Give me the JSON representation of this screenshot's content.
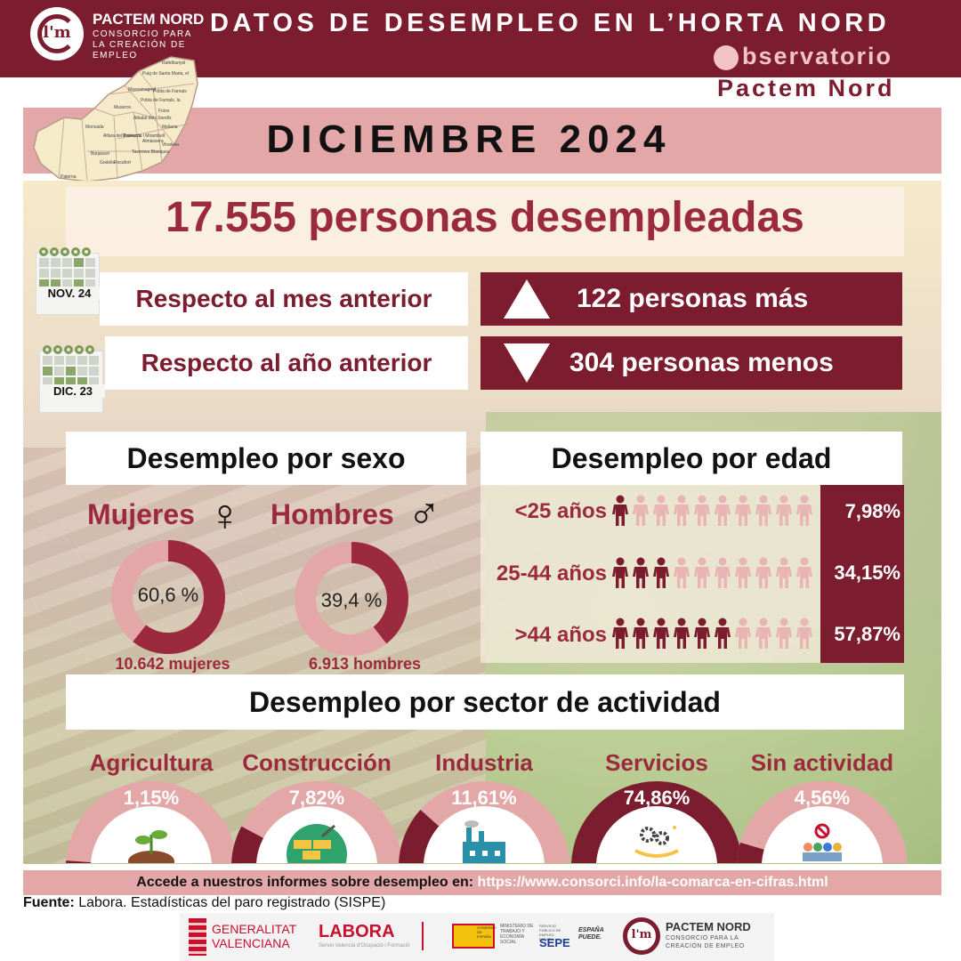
{
  "header": {
    "brand_name": "PACTEM NORD",
    "brand_tagline": "CONSORCIO PARA LA CREACIÓN DE EMPLEO",
    "logo_text": "l'm",
    "title": "DATOS DE DESEMPLEO EN L’HORTA NORD",
    "observatorio": "bservatorio",
    "observatorio_sub": "Pactem Nord"
  },
  "map_labels": [
    "Rafelbunyol",
    "Puig de Santa Maria, el",
    "Massamagrell",
    "Pobla de Farnals, la",
    "Museros",
    "Albalat dels Sorells",
    "Foios",
    "Meliana",
    "Moncada",
    "Alfara del Patriarca",
    "Bonrepòs i Mirambell",
    "Almàssera",
    "Tavernes Blanques",
    "Burjassot",
    "Godella",
    "Rocafort",
    "Paterna",
    "Vinalesa",
    "Pobla de Farnals"
  ],
  "month": "DICIEMBRE 2024",
  "headline": "17.555 personas desempleadas",
  "comparisons": [
    {
      "calendar_label": "NOV. 24",
      "label": "Respecto al mes anterior",
      "value": "122 personas más",
      "direction": "up"
    },
    {
      "calendar_label": "DIC. 23",
      "label": "Respecto al año anterior",
      "value": "304 personas menos",
      "direction": "down"
    }
  ],
  "sex": {
    "title": "Desempleo por sexo",
    "women": {
      "label": "Mujeres",
      "symbol": "♀",
      "pct_label": "60,6 %",
      "pct": 60.6,
      "count": "10.642 mujeres"
    },
    "men": {
      "label": "Hombres",
      "symbol": "♂",
      "pct_label": "39,4 %",
      "pct": 39.4,
      "count": "6.913 hombres"
    }
  },
  "age": {
    "title": "Desempleo por edad",
    "groups": [
      {
        "label": "<25 años",
        "pct_label": "7,98%",
        "filled_icons": 1
      },
      {
        "label": "25-44 años",
        "pct_label": "34,15%",
        "filled_icons": 3
      },
      {
        "label": ">44 años",
        "pct_label": "57,87%",
        "filled_icons": 6
      }
    ],
    "icons_per_row": 10
  },
  "sectors": {
    "title": "Desempleo por sector de actividad",
    "items": [
      {
        "name": "Agricultura",
        "pct_label": "1,15%",
        "pct": 1.15,
        "icon": "plant-icon"
      },
      {
        "name": "Construcción",
        "pct_label": "7,82%",
        "pct": 7.82,
        "icon": "bricks-trowel-icon"
      },
      {
        "name": "Industria",
        "pct_label": "11,61%",
        "pct": 11.61,
        "icon": "factory-icon"
      },
      {
        "name": "Servicios",
        "pct_label": "74,86%",
        "pct": 74.86,
        "icon": "gears-hand-icon"
      },
      {
        "name": "Sin actividad",
        "pct_label": "4,56%",
        "pct": 4.56,
        "icon": "no-people-icon"
      }
    ]
  },
  "footer": {
    "link_prefix": "Accede a nuestros informes sobre desempleo en:",
    "link_url": "https://www.consorci.info/la-comarca-en-cifras.html",
    "source_bold": "Fuente:",
    "source_text": "Labora. Estadísticas del paro registrado (SISPE)",
    "logos": {
      "gva_1": "GENERALITAT",
      "gva_2": "VALENCIANA",
      "labora": "LABORA",
      "labora_sub": "Servei Valencià d'Ocupació i Formació",
      "gobierno": "GOBIERNO DE ESPAÑA",
      "ministerio": "MINISTERIO DE TRABAJO Y ECONOMÍA SOCIAL",
      "sepe_sub": "SERVICIO PÚBLICO DE EMPLEO ESTATAL",
      "sepe": "SEPE",
      "espana_1": "ESPAÑA",
      "espana_2": "PUEDE.",
      "pactem_name": "PACTEM NORD",
      "pactem_tagline": "CONSORCIO PARA LA CREACIÓN DE EMPLEO",
      "pactem_logo": "l'm"
    }
  },
  "colors": {
    "wine": "#7b1c2f",
    "rose": "#e3a7a7",
    "crimson": "#9b2a3e",
    "pink_light": "#e8b4b4"
  }
}
